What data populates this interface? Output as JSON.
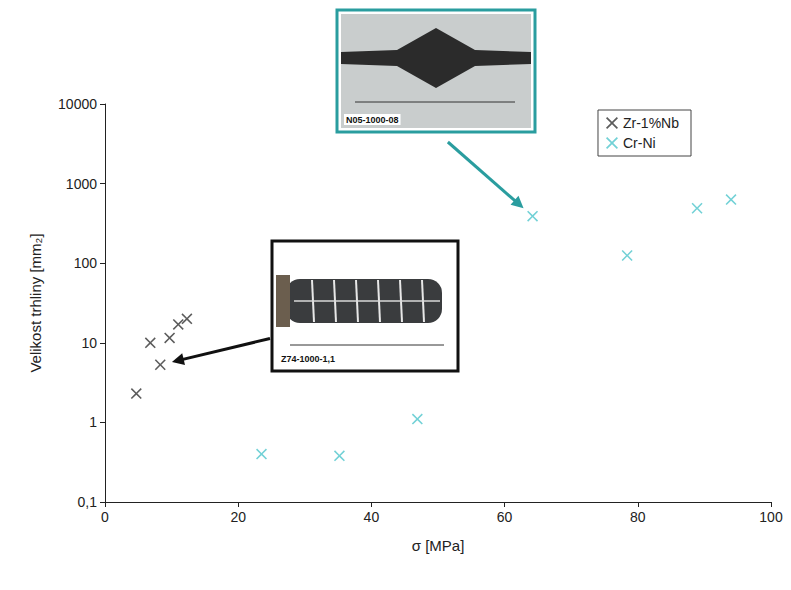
{
  "chart_data": {
    "type": "scatter",
    "x_label": "σ [MPa]",
    "y_label": "Velikost trhliny [mm₂]",
    "xlim": [
      0,
      100
    ],
    "xticks": [
      0,
      20,
      40,
      60,
      80,
      100
    ],
    "ylim": [
      0.1,
      10000
    ],
    "yticks": [
      {
        "value": 0.1,
        "label": "0,1"
      },
      1,
      10,
      100,
      1000,
      10000
    ],
    "log": "y",
    "grid": false,
    "legend": "top-right",
    "marker": "x",
    "series": [
      {
        "name": "Zr-1%Nb",
        "color": "#333333",
        "x": [
          4.7,
          6.8,
          8.3,
          9.7,
          11.0,
          12.3
        ],
        "values": [
          2.3,
          10,
          5.3,
          11.5,
          17,
          20
        ]
      },
      {
        "name": "Cr-Ni",
        "color": "#4fc6cc",
        "x": [
          23.5,
          35.2,
          46.9,
          64.2,
          78.4,
          88.9,
          94.0
        ],
        "values": [
          0.4,
          0.38,
          1.1,
          390,
          125,
          490,
          630
        ]
      }
    ],
    "annotations": [
      {
        "text": "N05-1000-08",
        "x": 64.2,
        "y": 390
      },
      {
        "text": "Z74-1000-1,1",
        "x": 8.3,
        "y": 5.3
      }
    ]
  }
}
